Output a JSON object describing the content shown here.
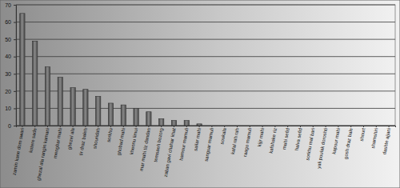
{
  "chart_data": {
    "type": "bar",
    "categories": [
      "zamin kane dom swari",
      "kotere sade",
      "ghezal ala rangin kamani",
      "mengbar mahi",
      "ghezel ala",
      "tir draz baleh",
      "shouridah",
      "sorkhu",
      "ghobad mahi",
      "khennu limui",
      "mar mahi tiz dandan",
      "temsaeh bozorg",
      "zaban gavi chahar khat",
      "hamour mamuli",
      "sailar mahi",
      "sangsar mamuli",
      "soukala",
      "kafal rah rah",
      "raago mamuli",
      "kijjr mahi",
      "kafshake riz",
      "mahi sefid",
      "halva sefid",
      "sorkhu mal bari",
      "yali poulak doroshti",
      "kapour mahi",
      "gosh draz bale",
      "shourt",
      "shamshiri",
      "dashte ajjani"
    ],
    "values": [
      65,
      49,
      34,
      28,
      22,
      21,
      17,
      13,
      12,
      10,
      8,
      4,
      3,
      3,
      1,
      0,
      0,
      0,
      0,
      0,
      0,
      0,
      0,
      0,
      0,
      0,
      0,
      0,
      0,
      0
    ],
    "color": "#5a5a5a",
    "ylim": [
      0,
      70
    ],
    "yticks": [
      0,
      10,
      20,
      30,
      40,
      50,
      60,
      70
    ],
    "grid": true
  }
}
